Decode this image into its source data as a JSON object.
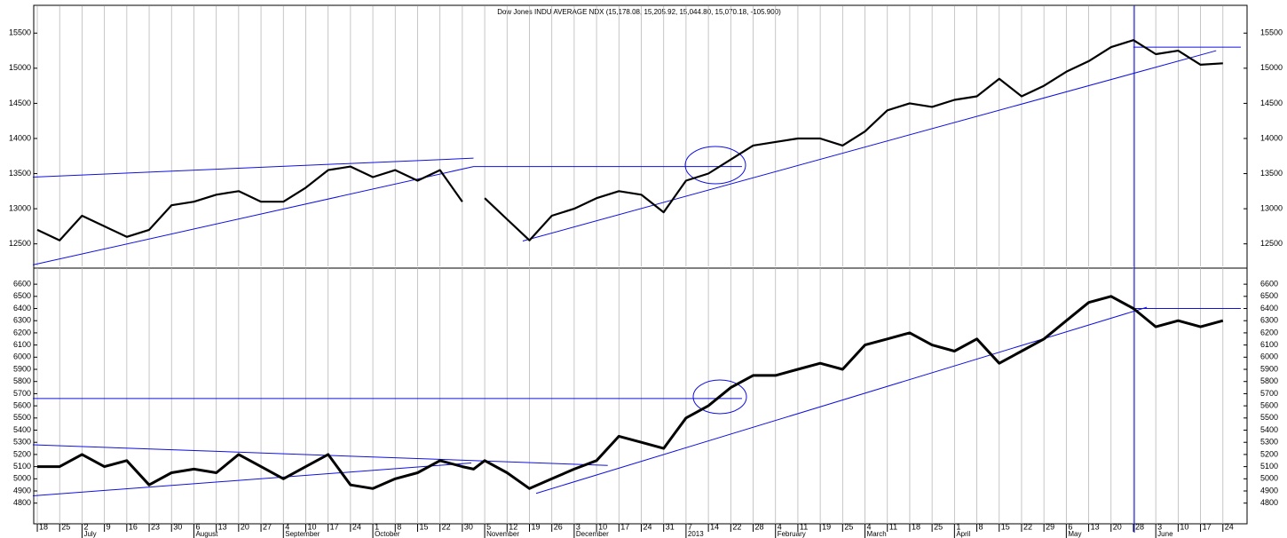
{
  "chart_data": [
    {
      "type": "line",
      "title": "Dow Jones INDU AVERAGE NDX (15,178.08, 15,205.92, 15,044.80, 15,070.18, -105.900)",
      "x": [
        0,
        1,
        2,
        3,
        4,
        5,
        6,
        7,
        8,
        9,
        10,
        11,
        12,
        13,
        14,
        15,
        16,
        17,
        18,
        19,
        19.5,
        20,
        21,
        22,
        23,
        24,
        25,
        26,
        27,
        28,
        29,
        30,
        31,
        32,
        33,
        34,
        35,
        36,
        37,
        38,
        39,
        40,
        41,
        42,
        43,
        44,
        45,
        46,
        47,
        48,
        49,
        50,
        51,
        52,
        53
      ],
      "series": [
        {
          "color": "#000000",
          "values": [
            12700,
            12550,
            12900,
            12750,
            12600,
            12700,
            13050,
            13100,
            13200,
            13250,
            13100,
            13100,
            13300,
            13550,
            13600,
            13450,
            13550,
            13400,
            13550,
            13100,
            null,
            13150,
            12850,
            12550,
            12900,
            13000,
            13150,
            13250,
            13200,
            12950,
            13400,
            13500,
            13700,
            13900,
            13950,
            14000,
            14000,
            13900,
            14100,
            14400,
            14500,
            14450,
            14550,
            14600,
            14850,
            14600,
            14750,
            14950,
            15100,
            15300,
            15400,
            15200,
            15250,
            15050,
            15070
          ]
        }
      ],
      "trendlines": [
        {
          "x": [
            -0.2,
            19.5
          ],
          "y": [
            13450,
            13720
          ]
        },
        {
          "x": [
            -0.2,
            19.5
          ],
          "y": [
            12200,
            13600
          ]
        },
        {
          "x": [
            19.5,
            31.5
          ],
          "y": [
            13600,
            13600
          ]
        },
        {
          "x": [
            21.7,
            52.7
          ],
          "y": [
            12540,
            15250
          ]
        },
        {
          "x": [
            49,
            53.8
          ],
          "y": [
            15300,
            15300
          ]
        }
      ],
      "xlim": [
        -0.16,
        54.08
      ],
      "xticks": [
        {
          "value": 0,
          "label": "18"
        },
        {
          "value": 1,
          "label": "25"
        },
        {
          "value": 2,
          "label": "2"
        },
        {
          "value": 3,
          "label": "9"
        },
        {
          "value": 4,
          "label": "16"
        },
        {
          "value": 5,
          "label": "23"
        },
        {
          "value": 6,
          "label": "30"
        },
        {
          "value": 7,
          "label": "6"
        },
        {
          "value": 8,
          "label": "13"
        },
        {
          "value": 9,
          "label": "20"
        },
        {
          "value": 10,
          "label": "27"
        },
        {
          "value": 11,
          "label": "4"
        },
        {
          "value": 12,
          "label": "10"
        },
        {
          "value": 13,
          "label": "17"
        },
        {
          "value": 14,
          "label": "24"
        },
        {
          "value": 15,
          "label": "1"
        },
        {
          "value": 16,
          "label": "8"
        },
        {
          "value": 17,
          "label": "15"
        },
        {
          "value": 18,
          "label": "22"
        },
        {
          "value": 19,
          "label": "30"
        },
        {
          "value": 20,
          "label": "5"
        },
        {
          "value": 21,
          "label": "12"
        },
        {
          "value": 22,
          "label": "19"
        },
        {
          "value": 23,
          "label": "26"
        },
        {
          "value": 24,
          "label": "3"
        },
        {
          "value": 25,
          "label": "10"
        },
        {
          "value": 26,
          "label": "17"
        },
        {
          "value": 27,
          "label": "24"
        },
        {
          "value": 28,
          "label": "31"
        },
        {
          "value": 29,
          "label": "7"
        },
        {
          "value": 30,
          "label": "14"
        },
        {
          "value": 31,
          "label": "22"
        },
        {
          "value": 32,
          "label": "28"
        },
        {
          "value": 33,
          "label": "4"
        },
        {
          "value": 34,
          "label": "11"
        },
        {
          "value": 35,
          "label": "19"
        },
        {
          "value": 36,
          "label": "25"
        },
        {
          "value": 37,
          "label": "4"
        },
        {
          "value": 38,
          "label": "11"
        },
        {
          "value": 39,
          "label": "18"
        },
        {
          "value": 40,
          "label": "25"
        },
        {
          "value": 41,
          "label": "1"
        },
        {
          "value": 42,
          "label": "8"
        },
        {
          "value": 43,
          "label": "15"
        },
        {
          "value": 44,
          "label": "22"
        },
        {
          "value": 45,
          "label": "29"
        },
        {
          "value": 46,
          "label": "6"
        },
        {
          "value": 47,
          "label": "13"
        },
        {
          "value": 48,
          "label": "20"
        },
        {
          "value": 49,
          "label": "28"
        },
        {
          "value": 50,
          "label": "3"
        },
        {
          "value": 51,
          "label": "10"
        },
        {
          "value": 52,
          "label": "17"
        },
        {
          "value": 53,
          "label": "24"
        }
      ],
      "ylim": [
        12180,
        15870
      ],
      "yticks": [
        12500,
        13000,
        13500,
        14000,
        14500,
        15000,
        15500
      ]
    },
    {
      "type": "line",
      "x": [
        0,
        1,
        2,
        3,
        4,
        5,
        6,
        7,
        8,
        9,
        10,
        11,
        12,
        13,
        14,
        15,
        16,
        17,
        18,
        19,
        19.5,
        20,
        21,
        22,
        23,
        24,
        25,
        26,
        27,
        28,
        29,
        30,
        31,
        32,
        33,
        34,
        35,
        36,
        37,
        38,
        39,
        40,
        41,
        42,
        43,
        44,
        45,
        46,
        47,
        48,
        49,
        50,
        51,
        52,
        53
      ],
      "series": [
        {
          "color": "#000000",
          "values": [
            5100,
            5100,
            5200,
            5100,
            5150,
            4950,
            5050,
            5080,
            5050,
            5200,
            5100,
            5000,
            5100,
            5200,
            4950,
            4920,
            5000,
            5050,
            5150,
            5100,
            5080,
            5150,
            5050,
            4920,
            5000,
            5080,
            5150,
            5350,
            5300,
            5250,
            5500,
            5600,
            5750,
            5850,
            5850,
            5900,
            5950,
            5900,
            6100,
            6150,
            6200,
            6100,
            6050,
            6150,
            5950,
            6050,
            6150,
            6300,
            6450,
            6500,
            6400,
            6250,
            6300,
            6250,
            6300
          ]
        }
      ],
      "trendlines": [
        {
          "x": [
            -0.2,
            31.5
          ],
          "y": [
            5660,
            5660
          ]
        },
        {
          "x": [
            -0.2,
            25.5
          ],
          "y": [
            5280,
            5110
          ]
        },
        {
          "x": [
            -0.2,
            19.4
          ],
          "y": [
            4860,
            5130
          ]
        },
        {
          "x": [
            22.3,
            49.6
          ],
          "y": [
            4880,
            6410
          ]
        },
        {
          "x": [
            49,
            53.8
          ],
          "y": [
            6400,
            6400
          ]
        }
      ],
      "xlim": [
        -0.16,
        54.08
      ],
      "xticks": [
        {
          "value": 0,
          "label": "18"
        },
        {
          "value": 1,
          "label": "25"
        },
        {
          "value": 2,
          "label": "2"
        },
        {
          "value": 3,
          "label": "9"
        },
        {
          "value": 4,
          "label": "16"
        },
        {
          "value": 5,
          "label": "23"
        },
        {
          "value": 6,
          "label": "30"
        },
        {
          "value": 7,
          "label": "6"
        },
        {
          "value": 8,
          "label": "13"
        },
        {
          "value": 9,
          "label": "20"
        },
        {
          "value": 10,
          "label": "27"
        },
        {
          "value": 11,
          "label": "4"
        },
        {
          "value": 12,
          "label": "10"
        },
        {
          "value": 13,
          "label": "17"
        },
        {
          "value": 14,
          "label": "24"
        },
        {
          "value": 15,
          "label": "1"
        },
        {
          "value": 16,
          "label": "8"
        },
        {
          "value": 17,
          "label": "15"
        },
        {
          "value": 18,
          "label": "22"
        },
        {
          "value": 19,
          "label": "30"
        },
        {
          "value": 20,
          "label": "5"
        },
        {
          "value": 21,
          "label": "12"
        },
        {
          "value": 22,
          "label": "19"
        },
        {
          "value": 23,
          "label": "26"
        },
        {
          "value": 24,
          "label": "3"
        },
        {
          "value": 25,
          "label": "10"
        },
        {
          "value": 26,
          "label": "17"
        },
        {
          "value": 27,
          "label": "24"
        },
        {
          "value": 28,
          "label": "31"
        },
        {
          "value": 29,
          "label": "7"
        },
        {
          "value": 30,
          "label": "14"
        },
        {
          "value": 31,
          "label": "22"
        },
        {
          "value": 32,
          "label": "28"
        },
        {
          "value": 33,
          "label": "4"
        },
        {
          "value": 34,
          "label": "11"
        },
        {
          "value": 35,
          "label": "19"
        },
        {
          "value": 36,
          "label": "25"
        },
        {
          "value": 37,
          "label": "4"
        },
        {
          "value": 38,
          "label": "11"
        },
        {
          "value": 39,
          "label": "18"
        },
        {
          "value": 40,
          "label": "25"
        },
        {
          "value": 41,
          "label": "1"
        },
        {
          "value": 42,
          "label": "8"
        },
        {
          "value": 43,
          "label": "15"
        },
        {
          "value": 44,
          "label": "22"
        },
        {
          "value": 45,
          "label": "29"
        },
        {
          "value": 46,
          "label": "6"
        },
        {
          "value": 47,
          "label": "13"
        },
        {
          "value": 48,
          "label": "20"
        },
        {
          "value": 49,
          "label": "28"
        },
        {
          "value": 50,
          "label": "3"
        },
        {
          "value": 51,
          "label": "10"
        },
        {
          "value": 52,
          "label": "17"
        },
        {
          "value": 53,
          "label": "24"
        }
      ],
      "month_ticks": [
        {
          "value": 2,
          "label": "July"
        },
        {
          "value": 7,
          "label": "August"
        },
        {
          "value": 11,
          "label": "September"
        },
        {
          "value": 15,
          "label": "October"
        },
        {
          "value": 20,
          "label": "November"
        },
        {
          "value": 24,
          "label": "December"
        },
        {
          "value": 29,
          "label": "2013"
        },
        {
          "value": 33,
          "label": "February"
        },
        {
          "value": 37,
          "label": "March"
        },
        {
          "value": 41,
          "label": "April"
        },
        {
          "value": 46,
          "label": "May"
        },
        {
          "value": 50,
          "label": "June"
        }
      ],
      "ylim": [
        4630,
        6725
      ],
      "yticks": [
        4800,
        4900,
        5000,
        5100,
        5200,
        5300,
        5400,
        5500,
        5600,
        5700,
        5800,
        5900,
        6000,
        6100,
        6200,
        6300,
        6400,
        6500,
        6600
      ]
    }
  ]
}
